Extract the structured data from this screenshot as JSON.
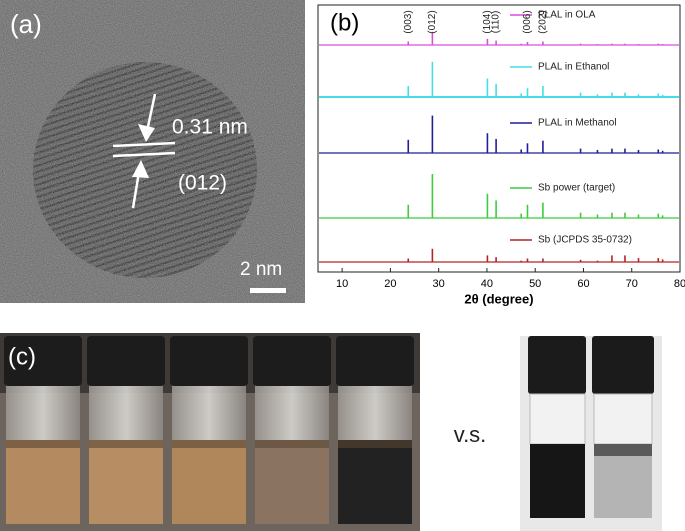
{
  "figure": {
    "panel_labels": [
      "(a)",
      "(b)",
      "(c)"
    ],
    "tem": {
      "spacing": "0.31 nm",
      "plane": "(012)",
      "scale_bar": "2 nm"
    },
    "comparison": "v.s."
  },
  "chart_data": {
    "type": "xrd",
    "xlabel": "2θ (degree)",
    "xlim": [
      5,
      80
    ],
    "xticks": [
      10,
      20,
      30,
      40,
      50,
      60,
      70,
      80
    ],
    "x": [
      23.7,
      28.7,
      40.1,
      41.9,
      47.1,
      48.4,
      51.6,
      59.4,
      62.9,
      65.9,
      68.6,
      71.4,
      75.5,
      76.4
    ],
    "peak_labels": [
      {
        "label": "(003)",
        "x": 23.7
      },
      {
        "label": "(012)",
        "x": 28.7
      },
      {
        "label": "(104)",
        "x": 40.1
      },
      {
        "label": "(110)",
        "x": 41.9
      },
      {
        "label": "(006)",
        "x": 48.4
      },
      {
        "label": "(202)",
        "x": 51.6
      }
    ],
    "series": [
      {
        "name": "PLAL in OLA",
        "color": "#d94fd9",
        "values": [
          0.08,
          0.3,
          0.14,
          0.1,
          0.03,
          0.07,
          0.08,
          0.03,
          0.02,
          0.03,
          0.03,
          0.02,
          0.03,
          0.02
        ]
      },
      {
        "name": "PLAL in Ethanol",
        "color": "#44dde6",
        "values": [
          0.25,
          0.8,
          0.42,
          0.3,
          0.08,
          0.2,
          0.25,
          0.1,
          0.06,
          0.1,
          0.1,
          0.06,
          0.08,
          0.05
        ]
      },
      {
        "name": "PLAL in Methanol",
        "color": "#1f1f99",
        "values": [
          0.3,
          0.85,
          0.45,
          0.32,
          0.08,
          0.22,
          0.28,
          0.1,
          0.07,
          0.1,
          0.1,
          0.07,
          0.08,
          0.05
        ]
      },
      {
        "name": "Sb power (target)",
        "color": "#3ecb3e",
        "values": [
          0.3,
          1,
          0.55,
          0.4,
          0.1,
          0.3,
          0.35,
          0.12,
          0.08,
          0.12,
          0.12,
          0.08,
          0.1,
          0.06
        ]
      },
      {
        "name": "Sb (JCPDS 35-0732)",
        "color": "#b32424",
        "values": [
          0.08,
          0.3,
          0.15,
          0.11,
          0.03,
          0.08,
          0.08,
          0.05,
          0.03,
          0.15,
          0.15,
          0.09,
          0.09,
          0.06
        ]
      }
    ]
  }
}
